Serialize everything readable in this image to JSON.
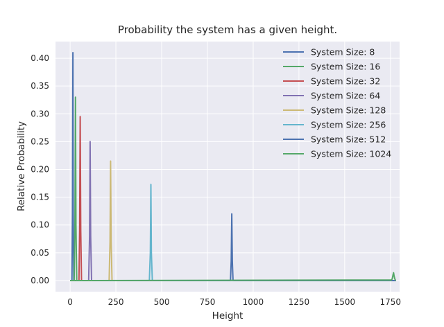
{
  "chart_data": {
    "type": "line",
    "title": "Probability the system has a given height.",
    "xlabel": "Height",
    "ylabel": "Relative Probability",
    "xlim": [
      -80,
      1800
    ],
    "ylim": [
      -0.02,
      0.43
    ],
    "xticks": [
      0,
      250,
      500,
      750,
      1000,
      1250,
      1500,
      1750
    ],
    "yticks": [
      0.0,
      0.05,
      0.1,
      0.15,
      0.2,
      0.25,
      0.3,
      0.35,
      0.4
    ],
    "ytick_labels": [
      "0.00",
      "0.05",
      "0.10",
      "0.15",
      "0.20",
      "0.25",
      "0.30",
      "0.35",
      "0.40"
    ],
    "xtick_labels": [
      "0",
      "250",
      "500",
      "750",
      "1000",
      "1250",
      "1500",
      "1750"
    ],
    "grid": true,
    "legend_position": "top-right",
    "series": [
      {
        "name": "System Size: 8",
        "color": "#4c72b0",
        "x": [
          0,
          10,
          13,
          15,
          17,
          20,
          1780
        ],
        "y": [
          0,
          0,
          0.12,
          0.41,
          0.12,
          0,
          0
        ]
      },
      {
        "name": "System Size: 16",
        "color": "#55a868",
        "x": [
          0,
          22,
          26,
          29,
          32,
          36,
          1780
        ],
        "y": [
          0,
          0,
          0.1,
          0.33,
          0.1,
          0,
          0
        ]
      },
      {
        "name": "System Size: 32",
        "color": "#c44e52",
        "x": [
          0,
          48,
          52,
          55,
          58,
          62,
          1780
        ],
        "y": [
          0,
          0,
          0.09,
          0.295,
          0.09,
          0,
          0
        ]
      },
      {
        "name": "System Size: 64",
        "color": "#8172b2",
        "x": [
          0,
          101,
          106,
          109,
          112,
          117,
          1780
        ],
        "y": [
          0,
          0,
          0.08,
          0.25,
          0.08,
          0,
          0
        ]
      },
      {
        "name": "System Size: 128",
        "color": "#ccb974",
        "x": [
          0,
          213,
          218,
          221,
          224,
          229,
          1780
        ],
        "y": [
          0,
          0,
          0.07,
          0.215,
          0.07,
          0,
          0
        ]
      },
      {
        "name": "System Size: 256",
        "color": "#64b5cd",
        "x": [
          0,
          433,
          438,
          441,
          444,
          449,
          1780
        ],
        "y": [
          0,
          0,
          0.05,
          0.173,
          0.05,
          0,
          0
        ]
      },
      {
        "name": "System Size: 512",
        "color": "#4c72b0",
        "x": [
          0,
          876,
          880,
          883,
          886,
          890,
          1780
        ],
        "y": [
          0,
          0,
          0.035,
          0.12,
          0.035,
          0,
          0
        ]
      },
      {
        "name": "System Size: 1024",
        "color": "#55a868",
        "x": [
          0,
          1755,
          1760,
          1764,
          1767,
          1770,
          1774,
          1778
        ],
        "y": [
          0,
          0.001,
          0.003,
          0.01,
          0.014,
          0.008,
          0.003,
          0
        ]
      }
    ]
  }
}
